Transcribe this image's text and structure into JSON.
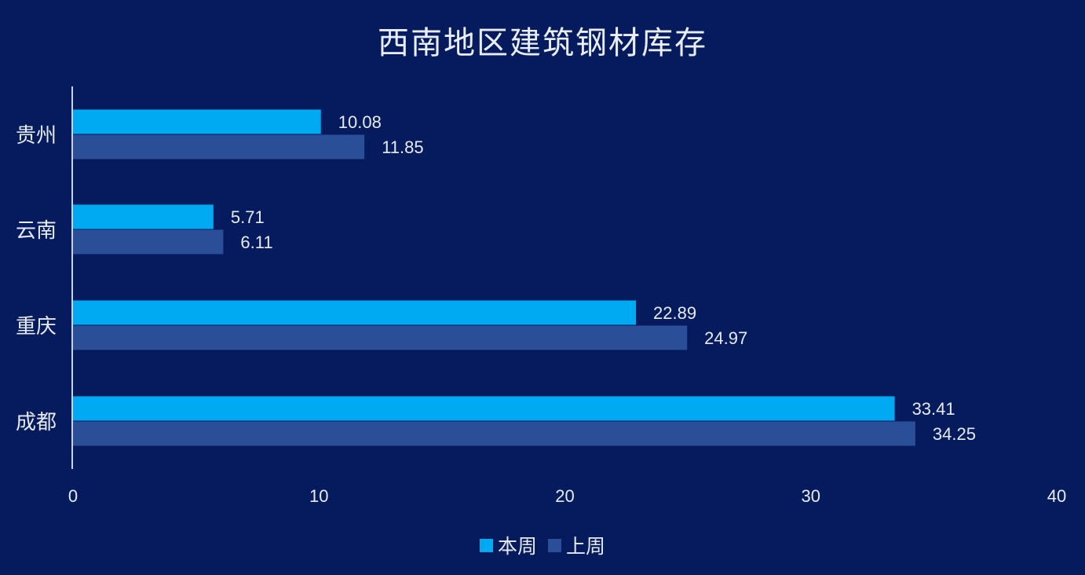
{
  "chart_data": {
    "type": "bar",
    "orientation": "horizontal",
    "title": "西南地区建筑钢材库存",
    "categories": [
      "贵州",
      "云南",
      "重庆",
      "成都"
    ],
    "series": [
      {
        "name": "本周",
        "values": [
          10.08,
          5.71,
          22.89,
          33.41
        ],
        "color": "#00aaf2"
      },
      {
        "name": "上周",
        "values": [
          11.85,
          6.11,
          24.97,
          34.25
        ],
        "color": "#2b4e98"
      }
    ],
    "value_labels": [
      [
        "10.08",
        "5.71",
        "22.89",
        "33.41"
      ],
      [
        "11.85",
        "6.11",
        "24.97",
        "34.25"
      ]
    ],
    "xlim": [
      0,
      40
    ],
    "x_ticks": [
      0,
      10,
      20,
      30,
      40
    ],
    "grid": false,
    "legend_position": "bottom",
    "xlabel": "",
    "ylabel": ""
  },
  "colors": {
    "background": "#061a5e",
    "axis": "#c9d3ee",
    "text": "#e6ebf8"
  }
}
